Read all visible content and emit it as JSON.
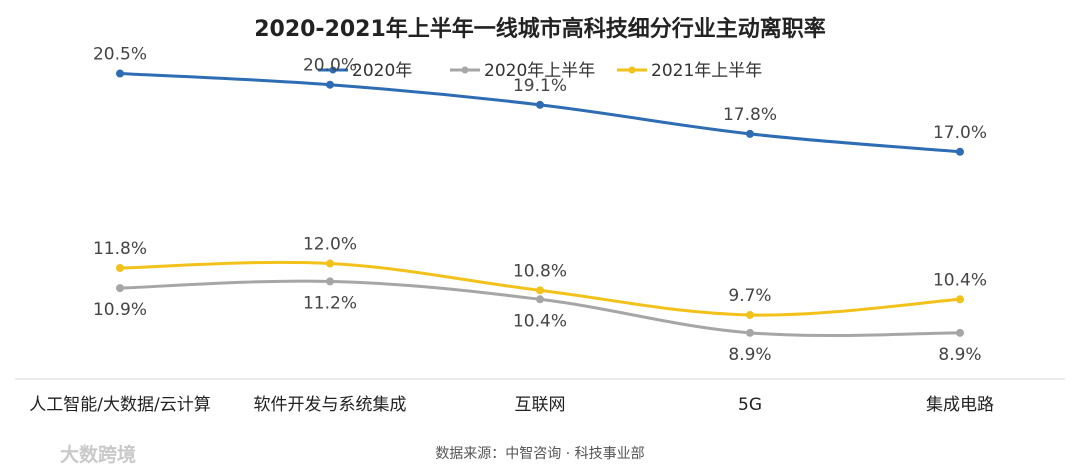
{
  "chart_data": {
    "type": "line",
    "title": "2020-2021年上半年一线城市高科技细分行业主动离职率",
    "categories": [
      "人工智能/大数据/云计算",
      "软件开发与系统集成",
      "互联网",
      "5G",
      "集成电路"
    ],
    "series": [
      {
        "name": "2020年",
        "values": [
          20.5,
          20.0,
          19.1,
          17.8,
          17.0
        ],
        "labels": [
          "20.5%",
          "20.0%",
          "19.1%",
          "17.8%",
          "17.0%"
        ],
        "color": "#2E6DB4",
        "label_position": "above"
      },
      {
        "name": "2020年上半年",
        "values": [
          10.9,
          11.2,
          10.4,
          8.9,
          8.9
        ],
        "labels": [
          "10.9%",
          "11.2%",
          "10.4%",
          "8.9%",
          "8.9%"
        ],
        "color": "#A6A6A6",
        "label_position": "below"
      },
      {
        "name": "2021年上半年",
        "values": [
          11.8,
          12.0,
          10.8,
          9.7,
          10.4
        ],
        "labels": [
          "11.8%",
          "12.0%",
          "10.8%",
          "9.7%",
          "10.4%"
        ],
        "color": "#F2C21B",
        "label_position": "above"
      }
    ],
    "xlabel": "",
    "ylabel": "",
    "ylim": [
      5,
      22
    ],
    "grid": false,
    "legend": "top-center"
  },
  "source": "数据来源：中智咨询 · 科技事业部",
  "watermark": "大数跨境"
}
